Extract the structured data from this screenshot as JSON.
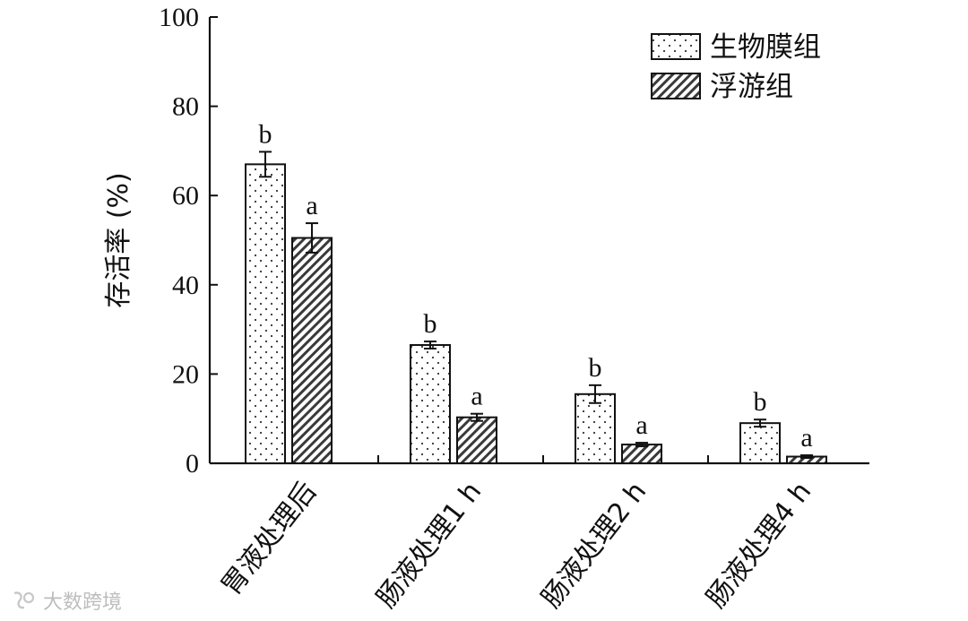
{
  "chart_data": {
    "type": "bar",
    "title": "",
    "xlabel": "",
    "ylabel": "存活率 (%)",
    "ylim": [
      0,
      100
    ],
    "yticks": [
      0,
      20,
      40,
      60,
      80,
      100
    ],
    "grid": false,
    "legend_position": "top-right",
    "categories": [
      "胃液处理后",
      "肠液处理1 h",
      "肠液处理2 h",
      "肠液处理4 h"
    ],
    "series": [
      {
        "name": "生物膜组",
        "pattern": "dots",
        "values": [
          67,
          26.5,
          15.5,
          9
        ],
        "errors": [
          2.8,
          0.8,
          2,
          0.8
        ],
        "labels": [
          "b",
          "b",
          "b",
          "b"
        ]
      },
      {
        "name": "浮游组",
        "pattern": "hatch",
        "values": [
          50.5,
          10.3,
          4.2,
          1.5
        ],
        "errors": [
          3.3,
          0.8,
          0.4,
          0.3
        ],
        "labels": [
          "a",
          "a",
          "a",
          "a"
        ]
      }
    ]
  },
  "watermark": {
    "text": "大数跨境"
  }
}
